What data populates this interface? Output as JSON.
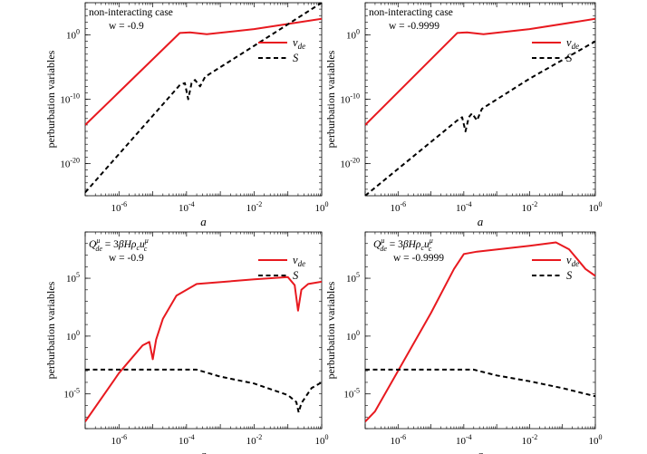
{
  "chart_data": [
    {
      "type": "line",
      "panel": "top-left",
      "annotation": [
        "non-interacting case",
        "w = -0.9"
      ],
      "xlabel": "a",
      "ylabel": "perburbation  variables",
      "xscale": "log",
      "yscale": "log",
      "xlim": [
        1e-07,
        1
      ],
      "ylim": [
        1e-25,
        100000.0
      ],
      "xticks": [
        {
          "exp": -6,
          "label": "10",
          "sup": "-6"
        },
        {
          "exp": -4,
          "label": "10",
          "sup": "-4"
        },
        {
          "exp": -2,
          "label": "10",
          "sup": "-2"
        },
        {
          "exp": 0,
          "label": "10",
          "sup": "0"
        }
      ],
      "yticks": [
        {
          "exp": 0,
          "label": "10",
          "sup": "0"
        },
        {
          "exp": -10,
          "label": "10",
          "sup": "-10"
        },
        {
          "exp": -20,
          "label": "10",
          "sup": "-20"
        }
      ],
      "legend": "top-right",
      "series": [
        {
          "name": "v_de",
          "label": "v",
          "sub": "de",
          "color": "#e8191f",
          "dash": "solid",
          "points": [
            [
              -7,
              -14
            ],
            [
              -4.2,
              0.3
            ],
            [
              -3.9,
              0.4
            ],
            [
              -3.4,
              0.1
            ],
            [
              -2,
              0.9
            ],
            [
              0,
              2.5
            ]
          ]
        },
        {
          "name": "S",
          "label": "S",
          "color": "#000000",
          "dash": "dashed",
          "points": [
            [
              -7,
              -24.5
            ],
            [
              -4.2,
              -7.8
            ],
            [
              -4.05,
              -7.5
            ],
            [
              -3.95,
              -10
            ],
            [
              -3.85,
              -7.5
            ],
            [
              -3.75,
              -7
            ],
            [
              -3.6,
              -8
            ],
            [
              -3.45,
              -6.5
            ],
            [
              -2,
              -1.7
            ],
            [
              0,
              5
            ]
          ]
        }
      ]
    },
    {
      "type": "line",
      "panel": "top-right",
      "annotation": [
        "non-interacting case",
        "w = -0.9999"
      ],
      "xlabel": "a",
      "ylabel": "perburbation  variables",
      "xscale": "log",
      "yscale": "log",
      "xlim": [
        1e-07,
        1
      ],
      "ylim": [
        1e-25,
        100000.0
      ],
      "xticks": [
        {
          "exp": -6,
          "label": "10",
          "sup": "-6"
        },
        {
          "exp": -4,
          "label": "10",
          "sup": "-4"
        },
        {
          "exp": -2,
          "label": "10",
          "sup": "-2"
        },
        {
          "exp": 0,
          "label": "10",
          "sup": "0"
        }
      ],
      "yticks": [
        {
          "exp": 0,
          "label": "10",
          "sup": "0"
        },
        {
          "exp": -10,
          "label": "10",
          "sup": "-10"
        },
        {
          "exp": -20,
          "label": "10",
          "sup": "-20"
        }
      ],
      "legend": "top-right",
      "series": [
        {
          "name": "v_de",
          "label": "v",
          "sub": "de",
          "color": "#e8191f",
          "dash": "solid",
          "points": [
            [
              -7,
              -14
            ],
            [
              -4.2,
              0.3
            ],
            [
              -3.9,
              0.4
            ],
            [
              -3.4,
              0.1
            ],
            [
              -2,
              0.9
            ],
            [
              0,
              2.5
            ]
          ]
        },
        {
          "name": "S",
          "label": "S",
          "color": "#000000",
          "dash": "dashed",
          "points": [
            [
              -7,
              -25
            ],
            [
              -4.2,
              -13.3
            ],
            [
              -4.05,
              -12.8
            ],
            [
              -3.95,
              -15
            ],
            [
              -3.85,
              -12.8
            ],
            [
              -3.75,
              -12.2
            ],
            [
              -3.6,
              -13.3
            ],
            [
              -3.45,
              -11.5
            ],
            [
              -2,
              -6.8
            ],
            [
              0,
              -1
            ]
          ]
        }
      ]
    },
    {
      "type": "line",
      "panel": "bottom-left",
      "annotation": [
        "Q^μ_de = 3βHρ_c u^μ_c",
        "w = -0.9"
      ],
      "xlabel": "a",
      "ylabel": "perburbation  variables",
      "xscale": "log",
      "yscale": "log",
      "xlim": [
        1e-07,
        1
      ],
      "ylim": [
        1e-08,
        1000000000.0
      ],
      "xticks": [
        {
          "exp": -6,
          "label": "10",
          "sup": "-6"
        },
        {
          "exp": -4,
          "label": "10",
          "sup": "-4"
        },
        {
          "exp": -2,
          "label": "10",
          "sup": "-2"
        },
        {
          "exp": 0,
          "label": "10",
          "sup": "0"
        }
      ],
      "yticks": [
        {
          "exp": 5,
          "label": "10",
          "sup": "5"
        },
        {
          "exp": 0,
          "label": "10",
          "sup": "0"
        },
        {
          "exp": -5,
          "label": "10",
          "sup": "-5"
        }
      ],
      "legend": "top-right",
      "series": [
        {
          "name": "v_de",
          "label": "v",
          "sub": "de",
          "color": "#e8191f",
          "dash": "solid",
          "points": [
            [
              -7,
              -7.4
            ],
            [
              -6,
              -3.2
            ],
            [
              -5.3,
              -0.8
            ],
            [
              -5.1,
              -0.5
            ],
            [
              -5,
              -2
            ],
            [
              -4.9,
              -0.3
            ],
            [
              -4.7,
              1.5
            ],
            [
              -4.3,
              3.5
            ],
            [
              -3.7,
              4.5
            ],
            [
              -2,
              4.9
            ],
            [
              -1,
              5.1
            ],
            [
              -0.8,
              4.4
            ],
            [
              -0.7,
              2.2
            ],
            [
              -0.6,
              4
            ],
            [
              -0.4,
              4.5
            ],
            [
              0,
              4.7
            ]
          ]
        },
        {
          "name": "S",
          "label": "S",
          "color": "#000000",
          "dash": "dashed",
          "points": [
            [
              -7,
              -2.9
            ],
            [
              -3.7,
              -2.9
            ],
            [
              -3,
              -3.5
            ],
            [
              -2,
              -4.1
            ],
            [
              -1,
              -5.1
            ],
            [
              -0.75,
              -5.7
            ],
            [
              -0.68,
              -6.6
            ],
            [
              -0.6,
              -5.8
            ],
            [
              -0.3,
              -4.5
            ],
            [
              0,
              -4
            ]
          ]
        }
      ]
    },
    {
      "type": "line",
      "panel": "bottom-right",
      "annotation": [
        "Q^μ_de = 3βHρ_c u^μ_c",
        "w = -0.9999"
      ],
      "xlabel": "a",
      "ylabel": "perburbation  variables",
      "xscale": "log",
      "yscale": "log",
      "xlim": [
        1e-07,
        1
      ],
      "ylim": [
        1e-08,
        1000000000.0
      ],
      "xticks": [
        {
          "exp": -6,
          "label": "10",
          "sup": "-6"
        },
        {
          "exp": -4,
          "label": "10",
          "sup": "-4"
        },
        {
          "exp": -2,
          "label": "10",
          "sup": "-2"
        },
        {
          "exp": 0,
          "label": "10",
          "sup": "0"
        }
      ],
      "yticks": [
        {
          "exp": 5,
          "label": "10",
          "sup": "5"
        },
        {
          "exp": 0,
          "label": "10",
          "sup": "0"
        },
        {
          "exp": -5,
          "label": "10",
          "sup": "-5"
        }
      ],
      "legend": "top-right",
      "series": [
        {
          "name": "v_de",
          "label": "v",
          "sub": "de",
          "color": "#e8191f",
          "dash": "solid",
          "points": [
            [
              -7,
              -7.4
            ],
            [
              -6.7,
              -6.5
            ],
            [
              -6,
              -3
            ],
            [
              -5,
              2
            ],
            [
              -4.3,
              5.8
            ],
            [
              -4,
              7.1
            ],
            [
              -3.6,
              7.3
            ],
            [
              -2,
              7.8
            ],
            [
              -1.2,
              8.1
            ],
            [
              -0.8,
              7.5
            ],
            [
              -0.3,
              5.8
            ],
            [
              0,
              5.2
            ]
          ]
        },
        {
          "name": "S",
          "label": "S",
          "color": "#000000",
          "dash": "dashed",
          "points": [
            [
              -7,
              -2.9
            ],
            [
              -3.7,
              -2.9
            ],
            [
              -3,
              -3.4
            ],
            [
              -2,
              -3.9
            ],
            [
              -1,
              -4.5
            ],
            [
              0,
              -5.2
            ]
          ]
        }
      ]
    }
  ]
}
